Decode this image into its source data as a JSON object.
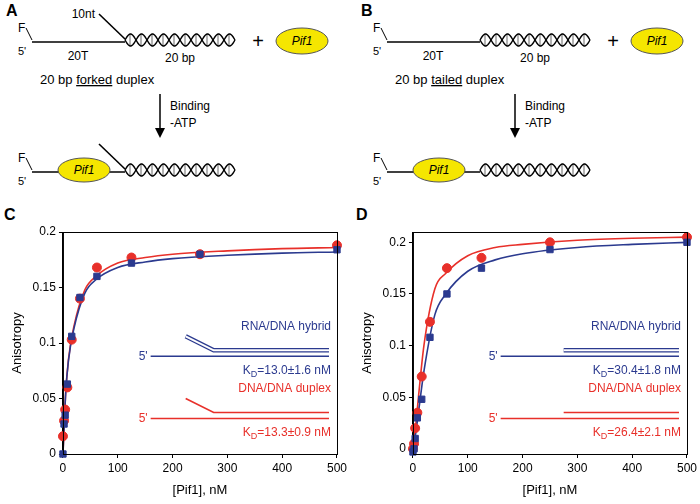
{
  "diagrams": [
    {
      "label": "A",
      "fluor": "F",
      "end": "5'",
      "flap": "10nt",
      "tail": "20T",
      "duplex": "20 bp",
      "caption": {
        "before": "20 bp ",
        "underlined": "forked",
        "after": " duplex"
      },
      "plus": "+",
      "enzyme": "Pif1",
      "step": [
        "Binding",
        "-ATP"
      ]
    },
    {
      "label": "B",
      "fluor": "F",
      "end": "5'",
      "tail": "20T",
      "duplex": "20 bp",
      "caption": {
        "before": "20 bp ",
        "underlined": "tailed",
        "after": " duplex"
      },
      "plus": "+",
      "enzyme": "Pif1",
      "step": [
        "Binding",
        "-ATP"
      ]
    }
  ],
  "chart_data": [
    {
      "panel": "C",
      "type": "scatter",
      "xlabel": "[Pif1], nM",
      "ylabel": "Anisotropy",
      "xlim": [
        0,
        500
      ],
      "xticks": [
        0,
        100,
        200,
        300,
        400,
        500
      ],
      "ylim": [
        0,
        0.2
      ],
      "yticks": [
        0,
        0.05,
        0.1,
        0.15,
        0.2
      ],
      "grid": false,
      "strand_end": "5'",
      "series": [
        {
          "name": "RNA/DNA hybrid",
          "color": "#2b3a8f",
          "marker": "square",
          "x": [
            0,
            2,
            4,
            8,
            16,
            31,
            62,
            125,
            250,
            500
          ],
          "values": [
            0.0,
            0.027,
            0.035,
            0.063,
            0.106,
            0.141,
            0.16,
            0.172,
            0.18,
            0.184
          ],
          "fit": {
            "x": [
              0,
              5,
              10,
              20,
              40,
              60,
              100,
              150,
              200,
              300,
              400,
              500
            ],
            "values": [
              0.0,
              0.055,
              0.084,
              0.113,
              0.145,
              0.157,
              0.168,
              0.173,
              0.176,
              0.179,
              0.181,
              0.182
            ]
          },
          "kd": {
            "symbol": "K",
            "subscript": "D",
            "text": "=13.0±1.6 nM"
          }
        },
        {
          "name": "DNA/DNA duplex",
          "color": "#e8302a",
          "marker": "circle",
          "x": [
            0,
            2,
            4,
            8,
            16,
            31,
            62,
            125,
            250,
            500
          ],
          "values": [
            0.016,
            0.03,
            0.04,
            0.06,
            0.103,
            0.14,
            0.168,
            0.177,
            0.18,
            0.188
          ],
          "fit": {
            "x": [
              0,
              5,
              10,
              20,
              40,
              60,
              100,
              150,
              200,
              300,
              400,
              500
            ],
            "values": [
              0.0,
              0.055,
              0.085,
              0.115,
              0.148,
              0.16,
              0.172,
              0.177,
              0.18,
              0.183,
              0.185,
              0.186
            ]
          },
          "kd": {
            "symbol": "K",
            "subscript": "D",
            "text": "=13.3±0.9 nM"
          }
        }
      ]
    },
    {
      "panel": "D",
      "type": "scatter",
      "xlabel": "[Pif1], nM",
      "ylabel": "Anisotropy",
      "xlim": [
        0,
        500
      ],
      "xticks": [
        0,
        100,
        200,
        300,
        400,
        500
      ],
      "ylim": [
        -0.005,
        0.21
      ],
      "yticks": [
        0,
        0.05,
        0.1,
        0.15,
        0.2
      ],
      "grid": false,
      "strand_end": "5'",
      "series": [
        {
          "name": "RNA/DNA hybrid",
          "color": "#2b3a8f",
          "marker": "square",
          "x": [
            0,
            2,
            4,
            8,
            16,
            31,
            62,
            125,
            250,
            500
          ],
          "values": [
            -0.003,
            0.0,
            0.01,
            0.03,
            0.048,
            0.108,
            0.15,
            0.175,
            0.193,
            0.2
          ],
          "fit": {
            "x": [
              0,
              5,
              10,
              20,
              40,
              60,
              100,
              150,
              200,
              300,
              400,
              500
            ],
            "values": [
              -0.003,
              0.015,
              0.035,
              0.075,
              0.13,
              0.15,
              0.172,
              0.183,
              0.189,
              0.195,
              0.198,
              0.2
            ]
          },
          "kd": {
            "symbol": "K",
            "subscript": "D",
            "text": "=30.4±1.8 nM"
          }
        },
        {
          "name": "DNA/DNA duplex",
          "color": "#e8302a",
          "marker": "circle",
          "x": [
            0,
            2,
            4,
            8,
            16,
            31,
            62,
            125,
            250,
            500
          ],
          "values": [
            0.0,
            0.005,
            0.02,
            0.035,
            0.07,
            0.123,
            0.175,
            0.185,
            0.2,
            0.205
          ],
          "fit": {
            "x": [
              0,
              5,
              10,
              20,
              40,
              60,
              100,
              150,
              200,
              300,
              400,
              500
            ],
            "values": [
              0.0,
              0.022,
              0.05,
              0.1,
              0.155,
              0.17,
              0.187,
              0.195,
              0.198,
              0.202,
              0.204,
              0.205
            ]
          },
          "kd": {
            "symbol": "K",
            "subscript": "D",
            "text": "=26.4±2.1 nM"
          }
        }
      ]
    }
  ]
}
